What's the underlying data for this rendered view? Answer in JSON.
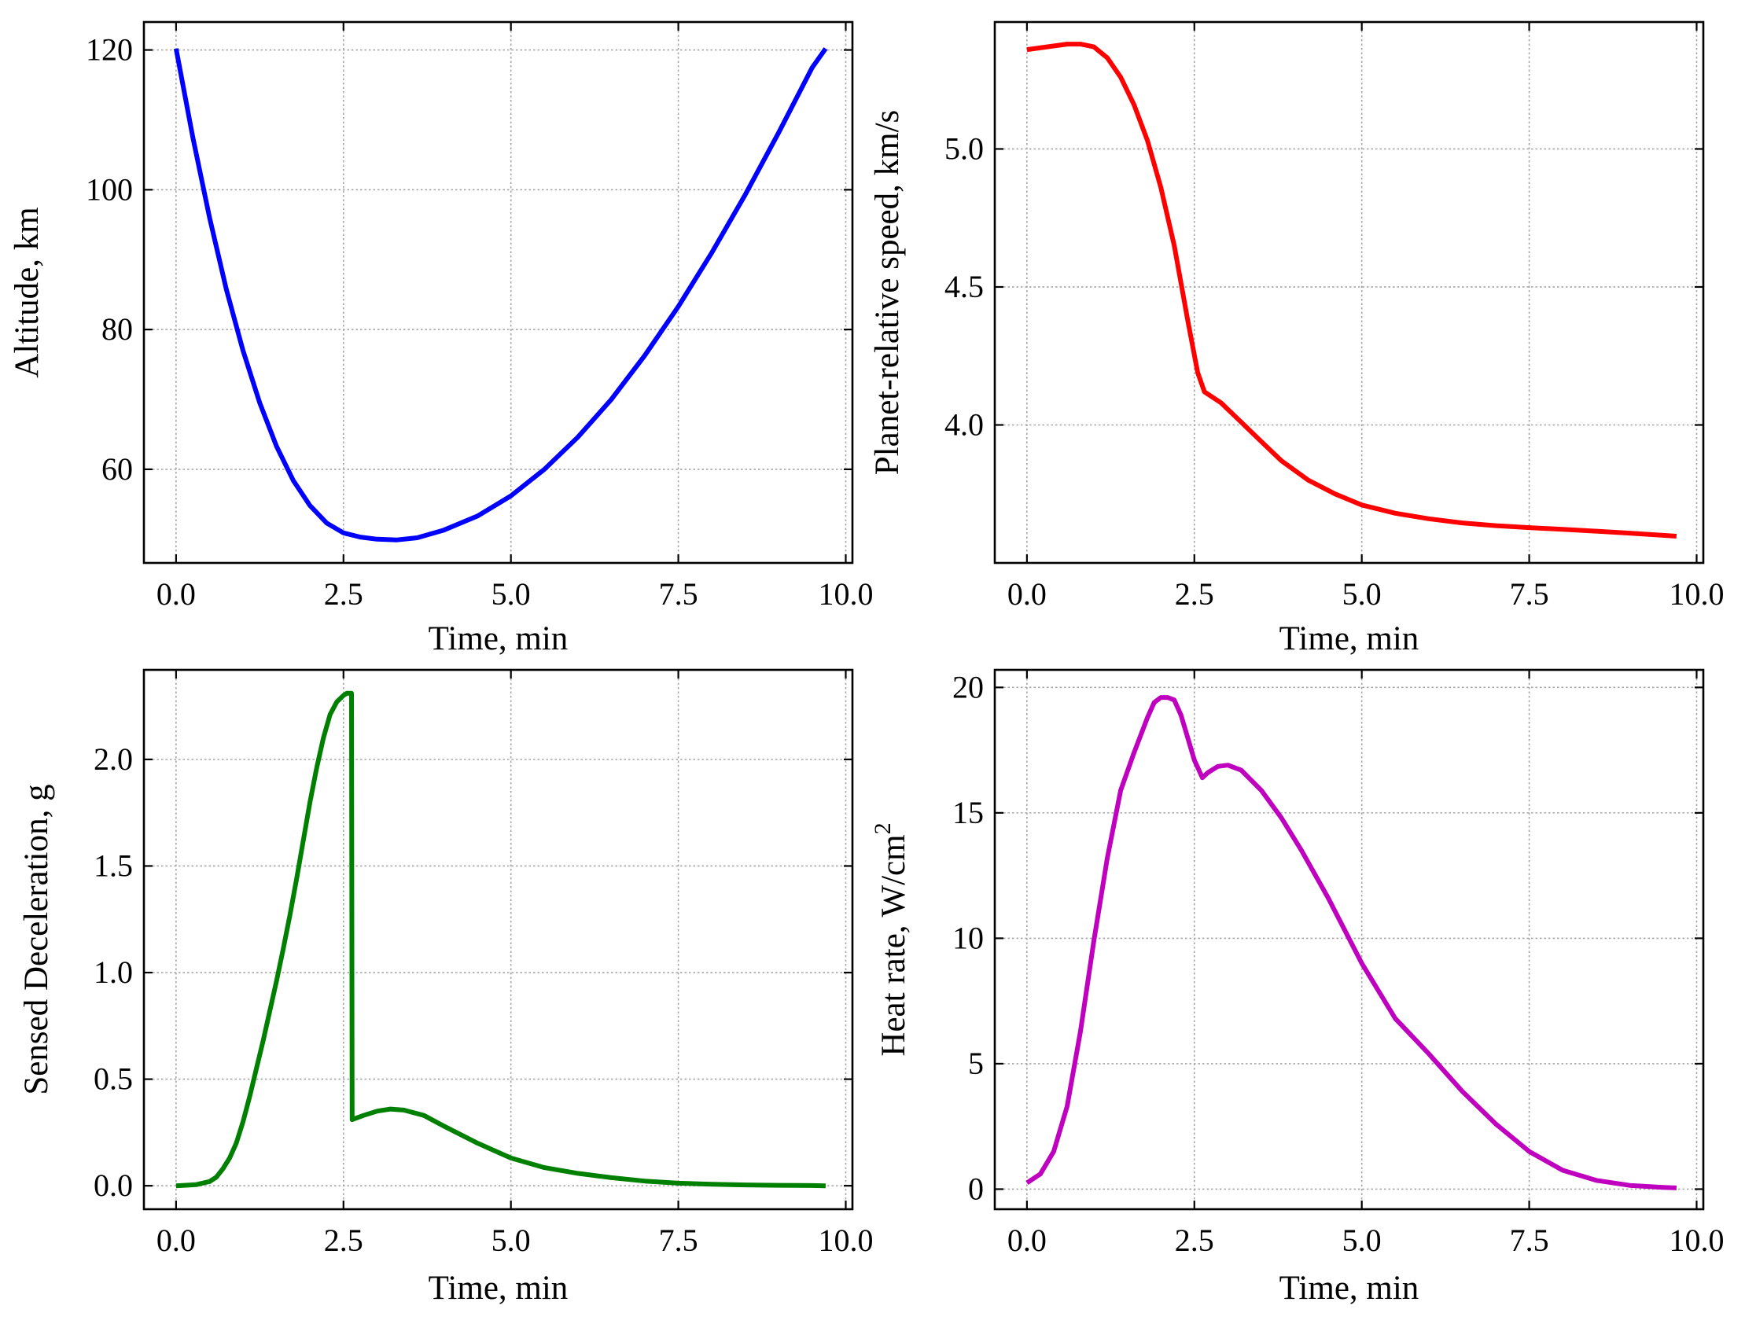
{
  "chart_data": [
    {
      "type": "line",
      "xlabel": "Time, min",
      "ylabel": "Altitude, km",
      "xlim": [
        -0.48,
        10.1
      ],
      "ylim": [
        46.6,
        124.0
      ],
      "xticks": [
        0.0,
        2.5,
        5.0,
        7.5,
        10.0
      ],
      "xtick_labels": [
        "0.0",
        "2.5",
        "5.0",
        "7.5",
        "10.0"
      ],
      "yticks": [
        60,
        80,
        100,
        120
      ],
      "ytick_labels": [
        "60",
        "80",
        "100",
        "120"
      ],
      "grid": true,
      "series": [
        {
          "color": "#0000ff",
          "x": [
            0,
            0.25,
            0.5,
            0.75,
            1.0,
            1.25,
            1.5,
            1.75,
            2.0,
            2.25,
            2.5,
            2.75,
            3.0,
            3.3,
            3.6,
            4.0,
            4.5,
            5.0,
            5.5,
            6.0,
            6.5,
            7.0,
            7.5,
            8.0,
            8.5,
            9.0,
            9.5,
            9.7
          ],
          "y": [
            120.2,
            107.5,
            96.0,
            85.8,
            77.0,
            69.5,
            63.3,
            58.4,
            54.8,
            52.3,
            50.9,
            50.3,
            50.0,
            49.9,
            50.2,
            51.3,
            53.3,
            56.2,
            60.0,
            64.6,
            70.0,
            76.3,
            83.3,
            91.0,
            99.3,
            108.2,
            117.5,
            120.2
          ]
        }
      ]
    },
    {
      "type": "line",
      "xlabel": "Time, min",
      "ylabel": "Planet-relative speed, km/s",
      "xlim": [
        -0.48,
        10.1
      ],
      "ylim": [
        3.5,
        5.46
      ],
      "xticks": [
        0.0,
        2.5,
        5.0,
        7.5,
        10.0
      ],
      "xtick_labels": [
        "0.0",
        "2.5",
        "5.0",
        "7.5",
        "10.0"
      ],
      "yticks": [
        4.0,
        4.5,
        5.0
      ],
      "ytick_labels": [
        "4.0",
        "4.5",
        "5.0"
      ],
      "grid": true,
      "series": [
        {
          "color": "#ff0000",
          "x": [
            0,
            0.3,
            0.6,
            0.8,
            1.0,
            1.2,
            1.4,
            1.6,
            1.8,
            2.0,
            2.2,
            2.4,
            2.55,
            2.65,
            2.9,
            3.2,
            3.5,
            3.8,
            4.2,
            4.6,
            5.0,
            5.5,
            6.0,
            6.5,
            7.0,
            7.5,
            8.0,
            8.5,
            9.0,
            9.5,
            9.7
          ],
          "y": [
            5.36,
            5.37,
            5.38,
            5.38,
            5.37,
            5.33,
            5.26,
            5.16,
            5.03,
            4.86,
            4.65,
            4.38,
            4.19,
            4.12,
            4.08,
            4.01,
            3.94,
            3.87,
            3.8,
            3.75,
            3.71,
            3.68,
            3.66,
            3.645,
            3.635,
            3.628,
            3.622,
            3.615,
            3.608,
            3.6,
            3.597
          ]
        }
      ]
    },
    {
      "type": "line",
      "xlabel": "Time, min",
      "ylabel": "Sensed Deceleration, g",
      "xlim": [
        -0.48,
        10.1
      ],
      "ylim": [
        -0.11,
        2.42
      ],
      "xticks": [
        0.0,
        2.5,
        5.0,
        7.5,
        10.0
      ],
      "xtick_labels": [
        "0.0",
        "2.5",
        "5.0",
        "7.5",
        "10.0"
      ],
      "yticks": [
        0.0,
        0.5,
        1.0,
        1.5,
        2.0
      ],
      "ytick_labels": [
        "0.0",
        "0.5",
        "1.0",
        "1.5",
        "2.0"
      ],
      "grid": true,
      "series": [
        {
          "color": "#008000",
          "x": [
            0,
            0.3,
            0.5,
            0.6,
            0.7,
            0.8,
            0.9,
            1.0,
            1.1,
            1.2,
            1.3,
            1.4,
            1.5,
            1.6,
            1.7,
            1.8,
            1.9,
            2.0,
            2.1,
            2.2,
            2.3,
            2.4,
            2.5,
            2.55,
            2.62,
            2.63,
            2.8,
            3.0,
            3.2,
            3.4,
            3.7,
            4.0,
            4.5,
            5.0,
            5.5,
            6.0,
            6.5,
            7.0,
            7.5,
            8.0,
            8.5,
            9.0,
            9.5,
            9.7
          ],
          "y": [
            0.0,
            0.005,
            0.02,
            0.04,
            0.08,
            0.13,
            0.2,
            0.3,
            0.42,
            0.55,
            0.68,
            0.82,
            0.96,
            1.11,
            1.27,
            1.44,
            1.62,
            1.8,
            1.96,
            2.1,
            2.21,
            2.27,
            2.3,
            2.31,
            2.31,
            0.31,
            0.33,
            0.35,
            0.36,
            0.355,
            0.33,
            0.28,
            0.2,
            0.13,
            0.085,
            0.058,
            0.038,
            0.022,
            0.012,
            0.007,
            0.004,
            0.002,
            0.001,
            0.0
          ]
        }
      ]
    },
    {
      "type": "line",
      "xlabel": "Time, min",
      "ylabel": "Heat rate,  W/cm",
      "ylabel_superscript": "2",
      "xlim": [
        -0.48,
        10.1
      ],
      "ylim": [
        -0.8,
        20.7
      ],
      "xticks": [
        0.0,
        2.5,
        5.0,
        7.5,
        10.0
      ],
      "xtick_labels": [
        "0.0",
        "2.5",
        "5.0",
        "7.5",
        "10.0"
      ],
      "yticks": [
        0,
        5,
        10,
        15,
        20
      ],
      "ytick_labels": [
        "0",
        "5",
        "10",
        "15",
        "20"
      ],
      "grid": true,
      "series": [
        {
          "color": "#bf00bf",
          "x": [
            0,
            0.2,
            0.4,
            0.6,
            0.8,
            1.0,
            1.2,
            1.4,
            1.6,
            1.8,
            1.9,
            2.0,
            2.1,
            2.2,
            2.3,
            2.4,
            2.5,
            2.62,
            2.7,
            2.85,
            3.0,
            3.2,
            3.5,
            3.8,
            4.1,
            4.5,
            5.0,
            5.5,
            6.0,
            6.5,
            7.0,
            7.5,
            8.0,
            8.5,
            9.0,
            9.5,
            9.7
          ],
          "y": [
            0.25,
            0.6,
            1.5,
            3.3,
            6.3,
            9.9,
            13.2,
            15.9,
            17.4,
            18.8,
            19.4,
            19.6,
            19.6,
            19.5,
            18.9,
            18.0,
            17.1,
            16.4,
            16.6,
            16.85,
            16.9,
            16.7,
            15.9,
            14.8,
            13.5,
            11.6,
            9.0,
            6.8,
            5.4,
            3.9,
            2.6,
            1.5,
            0.75,
            0.35,
            0.15,
            0.07,
            0.05
          ]
        }
      ]
    }
  ]
}
